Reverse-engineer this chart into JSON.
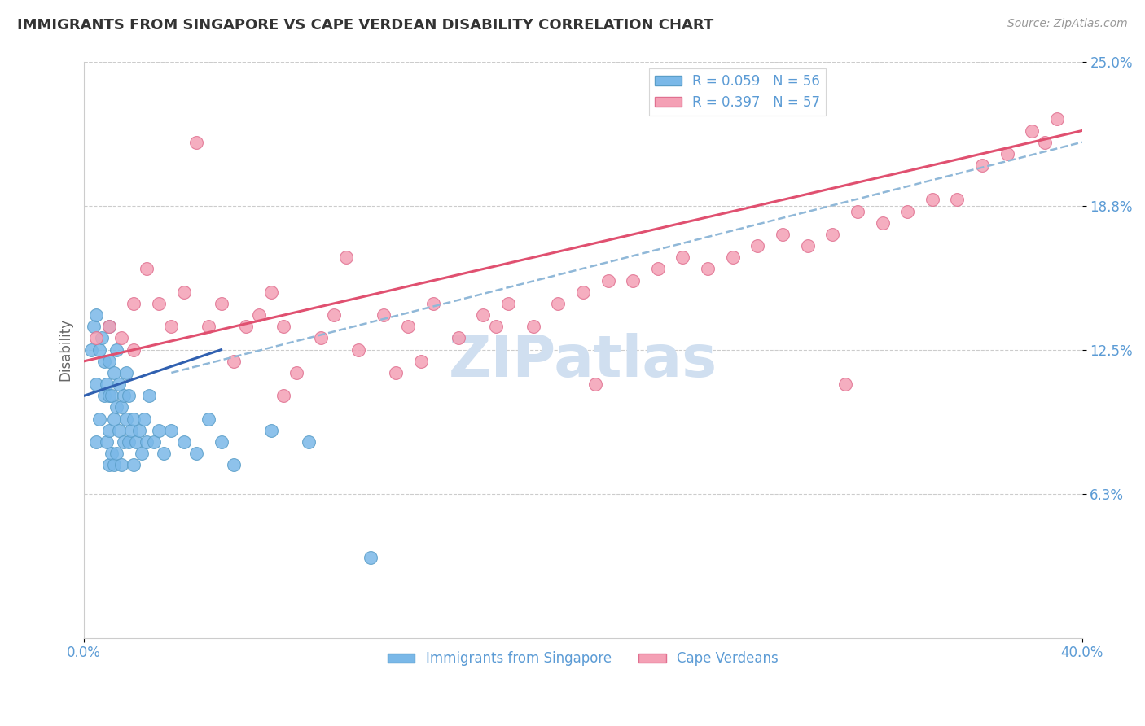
{
  "title": "IMMIGRANTS FROM SINGAPORE VS CAPE VERDEAN DISABILITY CORRELATION CHART",
  "source": "Source: ZipAtlas.com",
  "ylabel": "Disability",
  "x_min": 0.0,
  "x_max": 40.0,
  "y_min": 0.0,
  "y_max": 25.0,
  "y_ticks": [
    6.25,
    12.5,
    18.75,
    25.0
  ],
  "y_tick_labels": [
    "6.3%",
    "12.5%",
    "18.8%",
    "25.0%"
  ],
  "x_tick_labels": [
    "0.0%",
    "40.0%"
  ],
  "legend_entries": [
    {
      "label": "R = 0.059   N = 56",
      "color": "#7ab8e8"
    },
    {
      "label": "R = 0.397   N = 57",
      "color": "#f4a0b5"
    }
  ],
  "legend_labels_bottom": [
    "Immigrants from Singapore",
    "Cape Verdeans"
  ],
  "blue_color": "#7ab8e8",
  "pink_color": "#f4a0b5",
  "blue_edge": "#5a9ec8",
  "pink_edge": "#e07090",
  "blue_trend": "#3060b0",
  "pink_trend": "#e05070",
  "dash_color": "#90b8d8",
  "background_color": "#ffffff",
  "grid_color": "#cccccc",
  "title_color": "#333333",
  "axis_label_color": "#5b9bd5",
  "watermark_color": "#d0dff0",
  "singapore_x": [
    0.3,
    0.4,
    0.5,
    0.5,
    0.5,
    0.6,
    0.6,
    0.7,
    0.8,
    0.8,
    0.9,
    0.9,
    1.0,
    1.0,
    1.0,
    1.0,
    1.0,
    1.1,
    1.1,
    1.2,
    1.2,
    1.2,
    1.3,
    1.3,
    1.3,
    1.4,
    1.4,
    1.5,
    1.5,
    1.6,
    1.6,
    1.7,
    1.7,
    1.8,
    1.8,
    1.9,
    2.0,
    2.0,
    2.1,
    2.2,
    2.3,
    2.4,
    2.5,
    2.6,
    2.8,
    3.0,
    3.2,
    3.5,
    4.0,
    4.5,
    5.0,
    5.5,
    6.0,
    7.5,
    9.0,
    11.5
  ],
  "singapore_y": [
    12.5,
    13.5,
    8.5,
    11.0,
    14.0,
    9.5,
    12.5,
    13.0,
    10.5,
    12.0,
    8.5,
    11.0,
    7.5,
    9.0,
    10.5,
    12.0,
    13.5,
    8.0,
    10.5,
    7.5,
    9.5,
    11.5,
    8.0,
    10.0,
    12.5,
    9.0,
    11.0,
    7.5,
    10.0,
    8.5,
    10.5,
    9.5,
    11.5,
    8.5,
    10.5,
    9.0,
    7.5,
    9.5,
    8.5,
    9.0,
    8.0,
    9.5,
    8.5,
    10.5,
    8.5,
    9.0,
    8.0,
    9.0,
    8.5,
    8.0,
    9.5,
    8.5,
    7.5,
    9.0,
    8.5,
    3.5
  ],
  "capeverdean_x": [
    0.5,
    1.0,
    1.5,
    2.0,
    2.0,
    2.5,
    3.0,
    3.5,
    4.0,
    5.0,
    5.5,
    6.0,
    6.5,
    7.0,
    7.5,
    8.0,
    8.5,
    9.5,
    10.0,
    11.0,
    12.0,
    13.0,
    13.5,
    14.0,
    15.0,
    16.0,
    17.0,
    18.0,
    19.0,
    20.0,
    21.0,
    22.0,
    23.0,
    24.0,
    25.0,
    26.0,
    27.0,
    28.0,
    29.0,
    30.0,
    31.0,
    32.0,
    33.0,
    34.0,
    35.0,
    36.0,
    37.0,
    38.0,
    38.5,
    39.0,
    16.5,
    20.5,
    10.5,
    4.5,
    30.5,
    8.0,
    12.5
  ],
  "capeverdean_y": [
    13.0,
    13.5,
    13.0,
    12.5,
    14.5,
    16.0,
    14.5,
    13.5,
    15.0,
    13.5,
    14.5,
    12.0,
    13.5,
    14.0,
    15.0,
    13.5,
    11.5,
    13.0,
    14.0,
    12.5,
    14.0,
    13.5,
    12.0,
    14.5,
    13.0,
    14.0,
    14.5,
    13.5,
    14.5,
    15.0,
    15.5,
    15.5,
    16.0,
    16.5,
    16.0,
    16.5,
    17.0,
    17.5,
    17.0,
    17.5,
    18.5,
    18.0,
    18.5,
    19.0,
    19.0,
    20.5,
    21.0,
    22.0,
    21.5,
    22.5,
    13.5,
    11.0,
    16.5,
    21.5,
    11.0,
    10.5,
    11.5
  ],
  "sg_trend_start_x": 0.0,
  "sg_trend_end_x": 5.5,
  "sg_trend_start_y": 10.5,
  "sg_trend_end_y": 12.5,
  "cv_trend_start_x": 0.0,
  "cv_trend_end_x": 40.0,
  "cv_trend_start_y": 12.0,
  "cv_trend_end_y": 22.0,
  "dash_trend_start_x": 3.5,
  "dash_trend_end_x": 40.0,
  "dash_trend_start_y": 11.5,
  "dash_trend_end_y": 21.5
}
